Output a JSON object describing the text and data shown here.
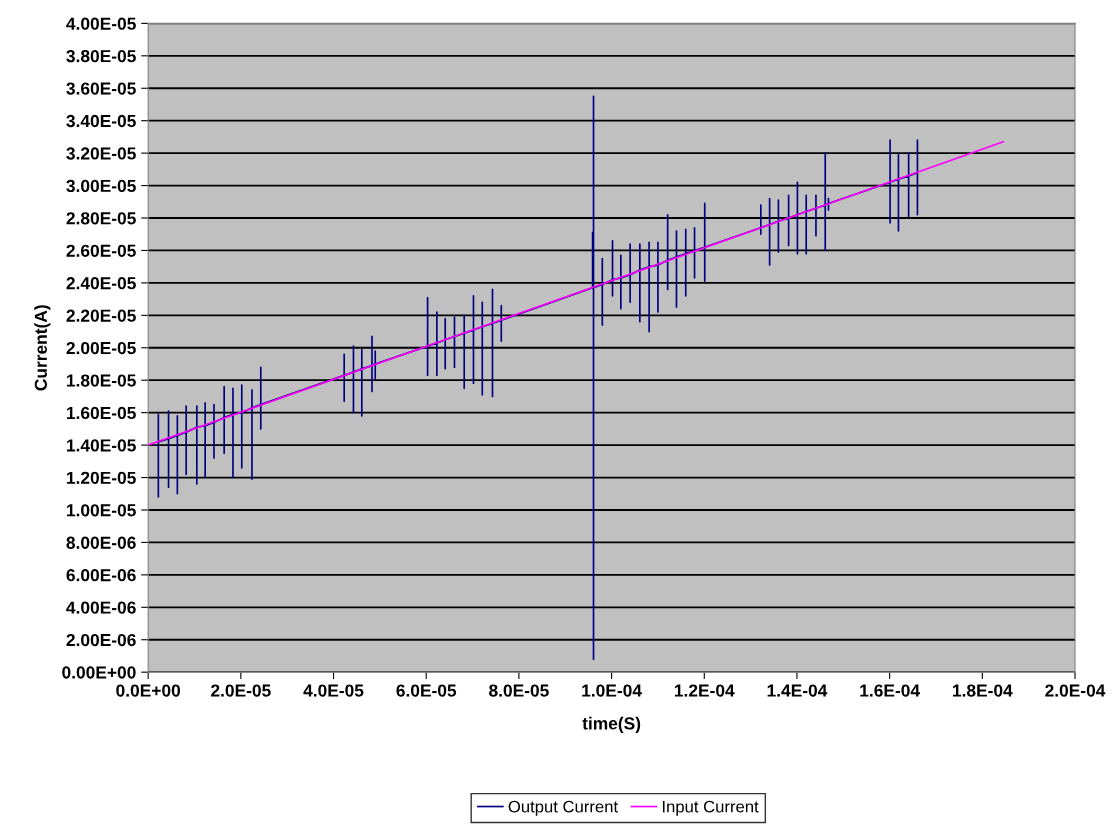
{
  "chart_data": {
    "type": "line",
    "xlabel": "time(S)",
    "ylabel": "Current(A)",
    "xlim": [
      0,
      0.0002
    ],
    "xticks": [
      {
        "value": 0,
        "label": "0.0E+00"
      },
      {
        "value": 2e-05,
        "label": "2.0E-05"
      },
      {
        "value": 4e-05,
        "label": "4.0E-05"
      },
      {
        "value": 6e-05,
        "label": "6.0E-05"
      },
      {
        "value": 8e-05,
        "label": "8.0E-05"
      },
      {
        "value": 0.0001,
        "label": "1.0E-04"
      },
      {
        "value": 0.00012,
        "label": "1.2E-04"
      },
      {
        "value": 0.00014,
        "label": "1.4E-04"
      },
      {
        "value": 0.00016,
        "label": "1.6E-04"
      },
      {
        "value": 0.00018,
        "label": "1.8E-04"
      },
      {
        "value": 0.0002,
        "label": "2.0E-04"
      }
    ],
    "ylim": [
      0,
      4e-05
    ],
    "yticks": [
      {
        "value": 0,
        "label": "0.00E+00"
      },
      {
        "value": 2e-06,
        "label": "2.00E-06"
      },
      {
        "value": 4e-06,
        "label": "4.00E-06"
      },
      {
        "value": 6e-06,
        "label": "6.00E-06"
      },
      {
        "value": 8e-06,
        "label": "8.00E-06"
      },
      {
        "value": 1e-05,
        "label": "1.00E-05"
      },
      {
        "value": 1.2e-05,
        "label": "1.20E-05"
      },
      {
        "value": 1.4e-05,
        "label": "1.40E-05"
      },
      {
        "value": 1.6e-05,
        "label": "1.60E-05"
      },
      {
        "value": 1.8e-05,
        "label": "1.80E-05"
      },
      {
        "value": 2e-05,
        "label": "2.00E-05"
      },
      {
        "value": 2.2e-05,
        "label": "2.20E-05"
      },
      {
        "value": 2.4e-05,
        "label": "2.40E-05"
      },
      {
        "value": 2.6e-05,
        "label": "2.60E-05"
      },
      {
        "value": 2.8e-05,
        "label": "2.80E-05"
      },
      {
        "value": 3e-05,
        "label": "3.00E-05"
      },
      {
        "value": 3.2e-05,
        "label": "3.20E-05"
      },
      {
        "value": 3.4e-05,
        "label": "3.40E-05"
      },
      {
        "value": 3.6e-05,
        "label": "3.60E-05"
      },
      {
        "value": 3.8e-05,
        "label": "3.80E-05"
      },
      {
        "value": 4e-05,
        "label": "4.00E-05"
      }
    ],
    "grid": "y",
    "legend": "bottom",
    "marker": "none",
    "line_style": "solid",
    "series": [
      {
        "name": "Output Current",
        "color": "#000080",
        "x": [
          2.2e-06,
          2.2e-06,
          2.2e-06,
          2.2e-06,
          4.4e-06,
          4.4e-06,
          4.4e-06,
          4.4e-06,
          6.3e-06,
          6.3e-06,
          6.3e-06,
          6.3e-06,
          8.2e-06,
          8.2e-06,
          8.2e-06,
          8.2e-06,
          1.05e-05,
          1.05e-05,
          1.05e-05,
          1.05e-05,
          1.23e-05,
          1.23e-05,
          1.23e-05,
          1.23e-05,
          1.42e-05,
          1.42e-05,
          1.42e-05,
          1.42e-05,
          1.64e-05,
          1.64e-05,
          1.64e-05,
          1.64e-05,
          1.83e-05,
          1.83e-05,
          1.83e-05,
          1.83e-05,
          2.02e-05,
          2.02e-05,
          2.02e-05,
          2.02e-05,
          2.24e-05,
          2.24e-05,
          2.24e-05,
          2.24e-05,
          2.43e-05,
          2.43e-05,
          2.43e-05,
          2.43e-05,
          4.23e-05,
          4.23e-05,
          4.23e-05,
          4.23e-05,
          4.43e-05,
          4.43e-05,
          4.43e-05,
          4.43e-05,
          4.61e-05,
          4.61e-05,
          4.61e-05,
          4.61e-05,
          4.83e-05,
          4.83e-05,
          4.83e-05,
          4.83e-05,
          4.9e-05,
          4.9e-05,
          4.9e-05,
          4.9e-05,
          6.03e-05,
          6.03e-05,
          6.03e-05,
          6.03e-05,
          6.23e-05,
          6.23e-05,
          6.23e-05,
          6.23e-05,
          6.41e-05,
          6.41e-05,
          6.41e-05,
          6.41e-05,
          6.61e-05,
          6.61e-05,
          6.61e-05,
          6.61e-05,
          6.82e-05,
          6.82e-05,
          6.82e-05,
          6.82e-05,
          7.02e-05,
          7.02e-05,
          7.02e-05,
          7.02e-05,
          7.21e-05,
          7.21e-05,
          7.21e-05,
          7.21e-05,
          7.43e-05,
          7.43e-05,
          7.43e-05,
          7.43e-05,
          7.62e-05,
          7.62e-05,
          7.62e-05,
          7.62e-05,
          9.59e-05,
          9.59e-05,
          9.59e-05,
          9.59e-05,
          9.61e-05,
          9.61e-05,
          9.61e-05,
          9.61e-05,
          9.8e-05,
          9.8e-05,
          9.8e-05,
          9.8e-05,
          0.0001002,
          0.0001002,
          0.0001002,
          0.0001002,
          0.000102,
          0.000102,
          0.000102,
          0.000102,
          0.000104,
          0.000104,
          0.000104,
          0.000104,
          0.0001061,
          0.0001061,
          0.0001061,
          0.0001061,
          0.0001081,
          0.0001081,
          0.0001081,
          0.0001081,
          0.00011,
          0.00011,
          0.00011,
          0.00011,
          0.0001121,
          0.0001121,
          0.0001121,
          0.0001121,
          0.000114,
          0.000114,
          0.000114,
          0.000114,
          0.000116,
          0.000116,
          0.000116,
          0.000116,
          0.0001179,
          0.0001179,
          0.0001179,
          0.0001179,
          0.0001201,
          0.0001201,
          0.0001201,
          0.0001201,
          0.0001322,
          0.0001322,
          0.0001322,
          0.0001322,
          0.0001341,
          0.0001341,
          0.0001341,
          0.0001341,
          0.000136,
          0.000136,
          0.000136,
          0.000136,
          0.0001382,
          0.0001382,
          0.0001382,
          0.0001382,
          0.0001401,
          0.0001401,
          0.0001401,
          0.0001401,
          0.000142,
          0.000142,
          0.000142,
          0.000142,
          0.0001441,
          0.0001441,
          0.0001441,
          0.0001441,
          0.0001461,
          0.0001461,
          0.0001461,
          0.0001461,
          0.0001468,
          0.0001468,
          0.0001468,
          0.0001468,
          0.0001601,
          0.0001601,
          0.0001601,
          0.0001601,
          0.0001619,
          0.0001619,
          0.0001619,
          0.0001619,
          0.0001641,
          0.0001641,
          0.0001641,
          0.0001641,
          0.000166,
          0.000166,
          0.000166,
          0.000166
        ],
        "values": [
          1.42e-05,
          1.59e-05,
          1.08e-05,
          1.42e-05,
          1.44e-05,
          1.61e-05,
          1.14e-05,
          1.44e-05,
          1.46e-05,
          1.58e-05,
          1.1e-05,
          1.46e-05,
          1.48e-05,
          1.64e-05,
          1.22e-05,
          1.48e-05,
          1.51e-05,
          1.64e-05,
          1.16e-05,
          1.51e-05,
          1.52e-05,
          1.66e-05,
          1.2e-05,
          1.52e-05,
          1.54e-05,
          1.65e-05,
          1.32e-05,
          1.54e-05,
          1.57e-05,
          1.76e-05,
          1.35e-05,
          1.57e-05,
          1.59e-05,
          1.75e-05,
          1.2e-05,
          1.59e-05,
          1.6e-05,
          1.77e-05,
          1.26e-05,
          1.6e-05,
          1.63e-05,
          1.74e-05,
          1.19e-05,
          1.63e-05,
          1.65e-05,
          1.88e-05,
          1.5e-05,
          1.65e-05,
          1.83e-05,
          1.96e-05,
          1.67e-05,
          1.83e-05,
          1.85e-05,
          2.01e-05,
          1.6e-05,
          1.85e-05,
          1.87e-05,
          1.99e-05,
          1.58e-05,
          1.87e-05,
          1.89e-05,
          2.07e-05,
          1.73e-05,
          1.89e-05,
          1.9e-05,
          1.98e-05,
          1.81e-05,
          1.9e-05,
          2.01e-05,
          2.31e-05,
          1.83e-05,
          2.01e-05,
          2.03e-05,
          2.22e-05,
          1.83e-05,
          2.03e-05,
          2.05e-05,
          2.18e-05,
          1.87e-05,
          2.05e-05,
          2.07e-05,
          2.19e-05,
          1.88e-05,
          2.07e-05,
          2.09e-05,
          2.2e-05,
          1.75e-05,
          2.09e-05,
          2.11e-05,
          2.32e-05,
          1.78e-05,
          2.11e-05,
          2.13e-05,
          2.28e-05,
          1.71e-05,
          2.13e-05,
          2.15e-05,
          2.36e-05,
          1.7e-05,
          2.15e-05,
          2.17e-05,
          2.26e-05,
          2.04e-05,
          2.17e-05,
          2.37e-05,
          2.71e-05,
          2.4e-05,
          2.37e-05,
          2.37e-05,
          3.55e-05,
          8e-07,
          2.37e-05,
          2.39e-05,
          2.55e-05,
          2.14e-05,
          2.39e-05,
          2.42e-05,
          2.66e-05,
          2.32e-05,
          2.42e-05,
          2.43e-05,
          2.57e-05,
          2.24e-05,
          2.43e-05,
          2.45e-05,
          2.64e-05,
          2.28e-05,
          2.45e-05,
          2.48e-05,
          2.64e-05,
          2.16e-05,
          2.48e-05,
          2.5e-05,
          2.65e-05,
          2.1e-05,
          2.5e-05,
          2.51e-05,
          2.65e-05,
          2.22e-05,
          2.51e-05,
          2.54e-05,
          2.82e-05,
          2.36e-05,
          2.54e-05,
          2.56e-05,
          2.72e-05,
          2.25e-05,
          2.56e-05,
          2.58e-05,
          2.73e-05,
          2.32e-05,
          2.58e-05,
          2.6e-05,
          2.74e-05,
          2.43e-05,
          2.6e-05,
          2.62e-05,
          2.89e-05,
          2.41e-05,
          2.62e-05,
          2.74e-05,
          2.88e-05,
          2.7e-05,
          2.74e-05,
          2.76e-05,
          2.92e-05,
          2.51e-05,
          2.76e-05,
          2.78e-05,
          2.91e-05,
          2.59e-05,
          2.78e-05,
          2.8e-05,
          2.94e-05,
          2.63e-05,
          2.8e-05,
          2.82e-05,
          3.02e-05,
          2.58e-05,
          2.82e-05,
          2.84e-05,
          2.94e-05,
          2.58e-05,
          2.84e-05,
          2.86e-05,
          2.94e-05,
          2.69e-05,
          2.86e-05,
          2.88e-05,
          3.2e-05,
          2.6e-05,
          2.88e-05,
          2.89e-05,
          2.92e-05,
          2.85e-05,
          2.89e-05,
          3.02e-05,
          3.28e-05,
          2.77e-05,
          3.02e-05,
          3.04e-05,
          3.19e-05,
          2.72e-05,
          3.04e-05,
          3.06e-05,
          3.2e-05,
          2.81e-05,
          3.06e-05,
          3.08e-05,
          3.28e-05,
          2.82e-05,
          3.08e-05
        ]
      },
      {
        "name": "Input Current",
        "color": "#ff00ff",
        "x": [
          0,
          0.0001845
        ],
        "values": [
          1.4e-05,
          3.27e-05
        ]
      }
    ]
  }
}
